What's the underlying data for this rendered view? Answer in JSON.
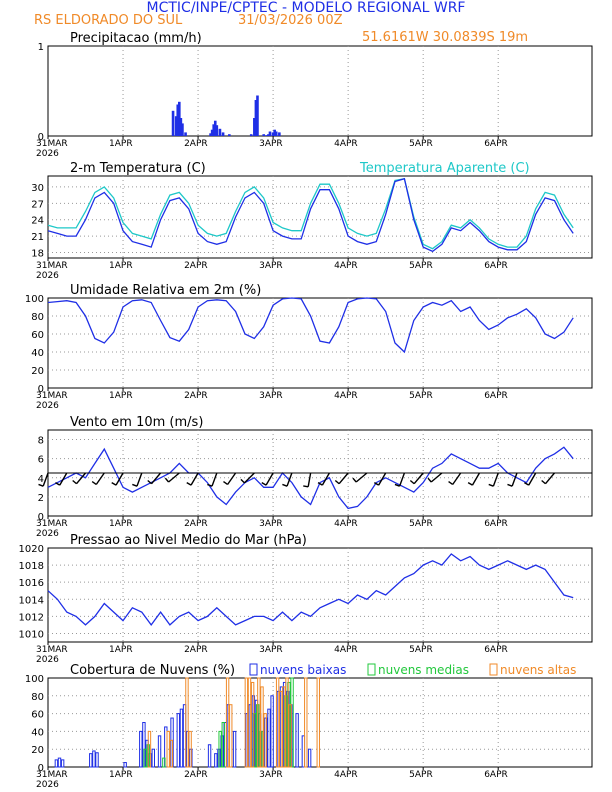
{
  "header": {
    "title": "MCTIC/INPE/CPTEC - MODELO REGIONAL WRF",
    "location": "RS ELDORADO DO SUL",
    "run": "31/03/2026 00Z",
    "coords": "51.6161W  30.0839S  19m"
  },
  "colors": {
    "blue": "#1f2fe6",
    "cyan": "#1ec8c8",
    "orange": "#f08a28",
    "green": "#22c83c",
    "title_blue": "#1f2fe6",
    "header_orange": "#f08a28"
  },
  "chart_data": [
    {
      "type": "bar",
      "id": "precip",
      "title": "Precipitacao (mm/h)",
      "ylim": [
        0,
        1
      ],
      "yticks": [
        0,
        1
      ],
      "x_ticks": [
        "31MAR",
        "1APR",
        "2APR",
        "3APR",
        "4APR",
        "5APR",
        "6APR"
      ],
      "x_year": "2026",
      "series": [
        {
          "name": "precip",
          "x": [
            40,
            41,
            41.5,
            42,
            42.5,
            43,
            44,
            52,
            52.5,
            53,
            53.5,
            54,
            55,
            56,
            58,
            65,
            66,
            66.5,
            67,
            69,
            70,
            70.5,
            71,
            72,
            72.5,
            73,
            74
          ],
          "values": [
            0.28,
            0.22,
            0.35,
            0.38,
            0.2,
            0.14,
            0.04,
            0.03,
            0.07,
            0.13,
            0.17,
            0.12,
            0.08,
            0.04,
            0.02,
            0.02,
            0.2,
            0.4,
            0.45,
            0.02,
            0.01,
            0.02,
            0.05,
            0.04,
            0.07,
            0.05,
            0.04
          ]
        }
      ]
    },
    {
      "type": "line",
      "id": "temp",
      "title": "2-m Temperatura (C)",
      "legend": "Temperatura Aparente (C)",
      "ylim": [
        17,
        32
      ],
      "yticks": [
        18,
        21,
        24,
        27,
        30
      ],
      "x_ticks": [
        "31MAR",
        "1APR",
        "2APR",
        "3APR",
        "4APR",
        "5APR",
        "6APR"
      ],
      "x_year": "2026",
      "series": [
        {
          "name": "Temperatura",
          "x": [
            0,
            3,
            6,
            9,
            12,
            15,
            18,
            21,
            24,
            27,
            30,
            33,
            36,
            39,
            42,
            45,
            48,
            51,
            54,
            57,
            60,
            63,
            66,
            69,
            72,
            75,
            78,
            81,
            84,
            87,
            90,
            93,
            96,
            99,
            102,
            105,
            108,
            111,
            114,
            117,
            120,
            123,
            126,
            129,
            132,
            135,
            138,
            141,
            144,
            147,
            150,
            153,
            156,
            159,
            162,
            165,
            168
          ],
          "values": [
            22,
            21.5,
            21,
            21,
            24,
            28,
            29,
            27,
            22,
            20,
            19.5,
            19,
            24,
            27.5,
            28,
            26,
            21.5,
            20,
            19.5,
            20,
            24.5,
            28,
            29,
            27,
            22,
            21,
            20.5,
            20.5,
            26,
            29.5,
            29.5,
            26,
            21,
            20,
            19.5,
            20,
            25,
            31,
            31.5,
            24,
            19,
            18.2,
            19.5,
            22.5,
            22,
            23.5,
            22,
            20,
            19,
            18.5,
            18.5,
            20,
            25,
            28,
            27.5,
            24,
            21.5
          ]
        },
        {
          "name": "Temperatura Aparente",
          "x": [
            0,
            3,
            6,
            9,
            12,
            15,
            18,
            21,
            24,
            27,
            30,
            33,
            36,
            39,
            42,
            45,
            48,
            51,
            54,
            57,
            60,
            63,
            66,
            69,
            72,
            75,
            78,
            81,
            84,
            87,
            90,
            93,
            96,
            99,
            102,
            105,
            108,
            111,
            114,
            117,
            120,
            123,
            126,
            129,
            132,
            135,
            138,
            141,
            144,
            147,
            150,
            153,
            156,
            159,
            162,
            165,
            168
          ],
          "values": [
            23,
            22.5,
            22.5,
            22.5,
            25.5,
            29,
            30,
            28,
            23.5,
            21.5,
            21,
            20.5,
            25,
            28.5,
            29,
            27,
            23,
            21.5,
            21,
            21.5,
            25.5,
            29,
            30,
            28,
            23.5,
            22.5,
            22,
            22,
            27,
            30.5,
            30.5,
            27,
            22.5,
            21.5,
            21,
            21.5,
            26,
            31.2,
            31.5,
            24.5,
            19.5,
            18.7,
            20,
            23,
            22.5,
            24,
            22.5,
            20.5,
            19.5,
            19,
            19,
            21,
            26,
            29,
            28.5,
            25,
            22.5
          ]
        }
      ]
    },
    {
      "type": "line",
      "id": "rh",
      "title": "Umidade Relativa em 2m (%)",
      "ylim": [
        0,
        100
      ],
      "yticks": [
        0,
        20,
        40,
        60,
        80,
        100
      ],
      "x_ticks": [
        "31MAR",
        "1APR",
        "2APR",
        "3APR",
        "4APR",
        "5APR",
        "6APR"
      ],
      "x_year": "2026",
      "series": [
        {
          "name": "UR",
          "x": [
            0,
            3,
            6,
            9,
            12,
            15,
            18,
            21,
            24,
            27,
            30,
            33,
            36,
            39,
            42,
            45,
            48,
            51,
            54,
            57,
            60,
            63,
            66,
            69,
            72,
            75,
            78,
            81,
            84,
            87,
            90,
            93,
            96,
            99,
            102,
            105,
            108,
            111,
            114,
            117,
            120,
            123,
            126,
            129,
            132,
            135,
            138,
            141,
            144,
            147,
            150,
            153,
            156,
            159,
            162,
            165,
            168
          ],
          "values": [
            95,
            96,
            97,
            95,
            80,
            55,
            50,
            62,
            90,
            97,
            98,
            95,
            75,
            56,
            52,
            65,
            90,
            97,
            98,
            97,
            85,
            60,
            55,
            68,
            92,
            99,
            100,
            99,
            80,
            52,
            50,
            68,
            95,
            99,
            100,
            99,
            85,
            50,
            40,
            75,
            90,
            95,
            92,
            97,
            85,
            90,
            75,
            65,
            70,
            78,
            82,
            88,
            78,
            60,
            55,
            62,
            78
          ]
        }
      ]
    },
    {
      "type": "line",
      "id": "wind",
      "title": "Vento em 10m (m/s)",
      "ylim": [
        0,
        9
      ],
      "yticks": [
        0,
        2,
        4,
        6,
        8
      ],
      "x_ticks": [
        "31MAR",
        "1APR",
        "2APR",
        "3APR",
        "4APR",
        "5APR",
        "6APR"
      ],
      "x_year": "2026",
      "series": [
        {
          "name": "Vento",
          "x": [
            0,
            3,
            6,
            9,
            12,
            15,
            18,
            21,
            24,
            27,
            30,
            33,
            36,
            39,
            42,
            45,
            48,
            51,
            54,
            57,
            60,
            63,
            66,
            69,
            72,
            75,
            78,
            81,
            84,
            87,
            90,
            93,
            96,
            99,
            102,
            105,
            108,
            111,
            114,
            117,
            120,
            123,
            126,
            129,
            132,
            135,
            138,
            141,
            144,
            147,
            150,
            153,
            156,
            159,
            162,
            165,
            168
          ],
          "values": [
            3,
            3.5,
            4,
            4.5,
            4,
            5.5,
            7,
            5,
            3,
            2.5,
            3,
            3.5,
            4,
            4.5,
            5.5,
            4.5,
            4.5,
            3.5,
            2,
            1.2,
            2.5,
            3.5,
            4,
            3,
            3,
            4.5,
            3.5,
            2,
            1.2,
            3.5,
            4,
            2,
            0.8,
            1,
            2,
            3.5,
            4,
            3.5,
            3,
            2.5,
            3.5,
            5,
            5.5,
            6.5,
            6,
            5.5,
            5,
            5,
            5.5,
            4.5,
            4,
            3.5,
            5,
            6,
            6.5,
            7.2,
            6
          ]
        }
      ],
      "barbs": {
        "x": [
          0,
          6,
          12,
          18,
          24,
          30,
          36,
          42,
          48,
          54,
          60,
          66,
          72,
          78,
          84,
          90,
          96,
          102,
          108,
          114,
          120,
          126,
          132,
          138,
          144,
          150,
          156,
          162
        ],
        "dir": [
          200,
          210,
          220,
          215,
          210,
          200,
          220,
          230,
          210,
          200,
          215,
          225,
          210,
          200,
          190,
          210,
          220,
          230,
          210,
          200,
          220,
          230,
          215,
          210,
          200,
          200,
          210,
          220
        ]
      }
    },
    {
      "type": "line",
      "id": "pressure",
      "title": "Pressao ao Nivel Medio do Mar (hPa)",
      "ylim": [
        1009,
        1020
      ],
      "yticks": [
        1010,
        1012,
        1014,
        1016,
        1018,
        1020
      ],
      "x_ticks": [
        "31MAR",
        "1APR",
        "2APR",
        "3APR",
        "4APR",
        "5APR",
        "6APR"
      ],
      "x_year": "2026",
      "series": [
        {
          "name": "PNMM",
          "x": [
            0,
            3,
            6,
            9,
            12,
            15,
            18,
            21,
            24,
            27,
            30,
            33,
            36,
            39,
            42,
            45,
            48,
            51,
            54,
            57,
            60,
            63,
            66,
            69,
            72,
            75,
            78,
            81,
            84,
            87,
            90,
            93,
            96,
            99,
            102,
            105,
            108,
            111,
            114,
            117,
            120,
            123,
            126,
            129,
            132,
            135,
            138,
            141,
            144,
            147,
            150,
            153,
            156,
            159,
            162,
            165,
            168
          ],
          "values": [
            1015,
            1014,
            1012.5,
            1012,
            1011,
            1012,
            1013.5,
            1012.5,
            1011.5,
            1013,
            1012.5,
            1011,
            1012.5,
            1011,
            1012,
            1012.5,
            1011.5,
            1012,
            1013,
            1012,
            1011,
            1011.5,
            1012,
            1012,
            1011.5,
            1012.5,
            1011.5,
            1012.5,
            1012,
            1013,
            1013.5,
            1014,
            1013.5,
            1014.5,
            1014,
            1015,
            1014.5,
            1015.5,
            1016.5,
            1017,
            1018,
            1018.5,
            1018,
            1019.3,
            1018.5,
            1019,
            1018,
            1017.5,
            1018,
            1018.5,
            1018,
            1017.5,
            1018,
            1017.5,
            1016,
            1014.5,
            1014.2
          ]
        }
      ]
    },
    {
      "type": "bar",
      "id": "clouds",
      "title": "Cobertura de Nuvens (%)",
      "ylim": [
        0,
        100
      ],
      "yticks": [
        0,
        20,
        40,
        60,
        80,
        100
      ],
      "x_ticks": [
        "31MAR",
        "1APR",
        "2APR",
        "3APR",
        "4APR",
        "5APR",
        "6APR"
      ],
      "x_year": "2026",
      "legend": [
        "nuvens baixas",
        "nuvens medias",
        "nuvens altas"
      ],
      "series": [
        {
          "name": "nuvens baixas",
          "x": [
            3,
            4,
            5,
            14,
            15,
            16,
            25,
            30,
            31,
            32,
            33,
            34,
            36,
            38,
            40,
            42,
            43,
            44,
            45,
            46,
            52,
            54,
            55,
            56,
            57,
            58,
            60,
            64,
            65,
            66,
            67,
            68,
            69,
            70,
            71,
            72,
            74,
            75,
            76,
            77,
            78,
            80,
            82,
            84
          ],
          "values": [
            8,
            10,
            8,
            15,
            18,
            16,
            5,
            40,
            50,
            30,
            15,
            20,
            35,
            45,
            55,
            60,
            65,
            70,
            40,
            20,
            25,
            15,
            20,
            35,
            50,
            70,
            40,
            60,
            70,
            80,
            75,
            60,
            40,
            55,
            65,
            80,
            85,
            90,
            95,
            85,
            70,
            60,
            35,
            20
          ]
        },
        {
          "name": "nuvens medias",
          "x": [
            31,
            32,
            37,
            55,
            56,
            66,
            67,
            68,
            76,
            77,
            78
          ],
          "values": [
            20,
            25,
            10,
            40,
            50,
            60,
            70,
            40,
            80,
            95,
            100
          ]
        },
        {
          "name": "nuvens altas",
          "x": [
            32,
            38,
            39,
            44,
            45,
            57,
            58,
            63,
            64,
            65,
            67,
            68,
            69,
            73,
            74,
            75,
            76,
            77,
            82,
            86
          ],
          "values": [
            40,
            40,
            30,
            100,
            40,
            100,
            70,
            100,
            100,
            95,
            100,
            90,
            60,
            100,
            85,
            90,
            100,
            70,
            100,
            100
          ]
        }
      ]
    }
  ]
}
